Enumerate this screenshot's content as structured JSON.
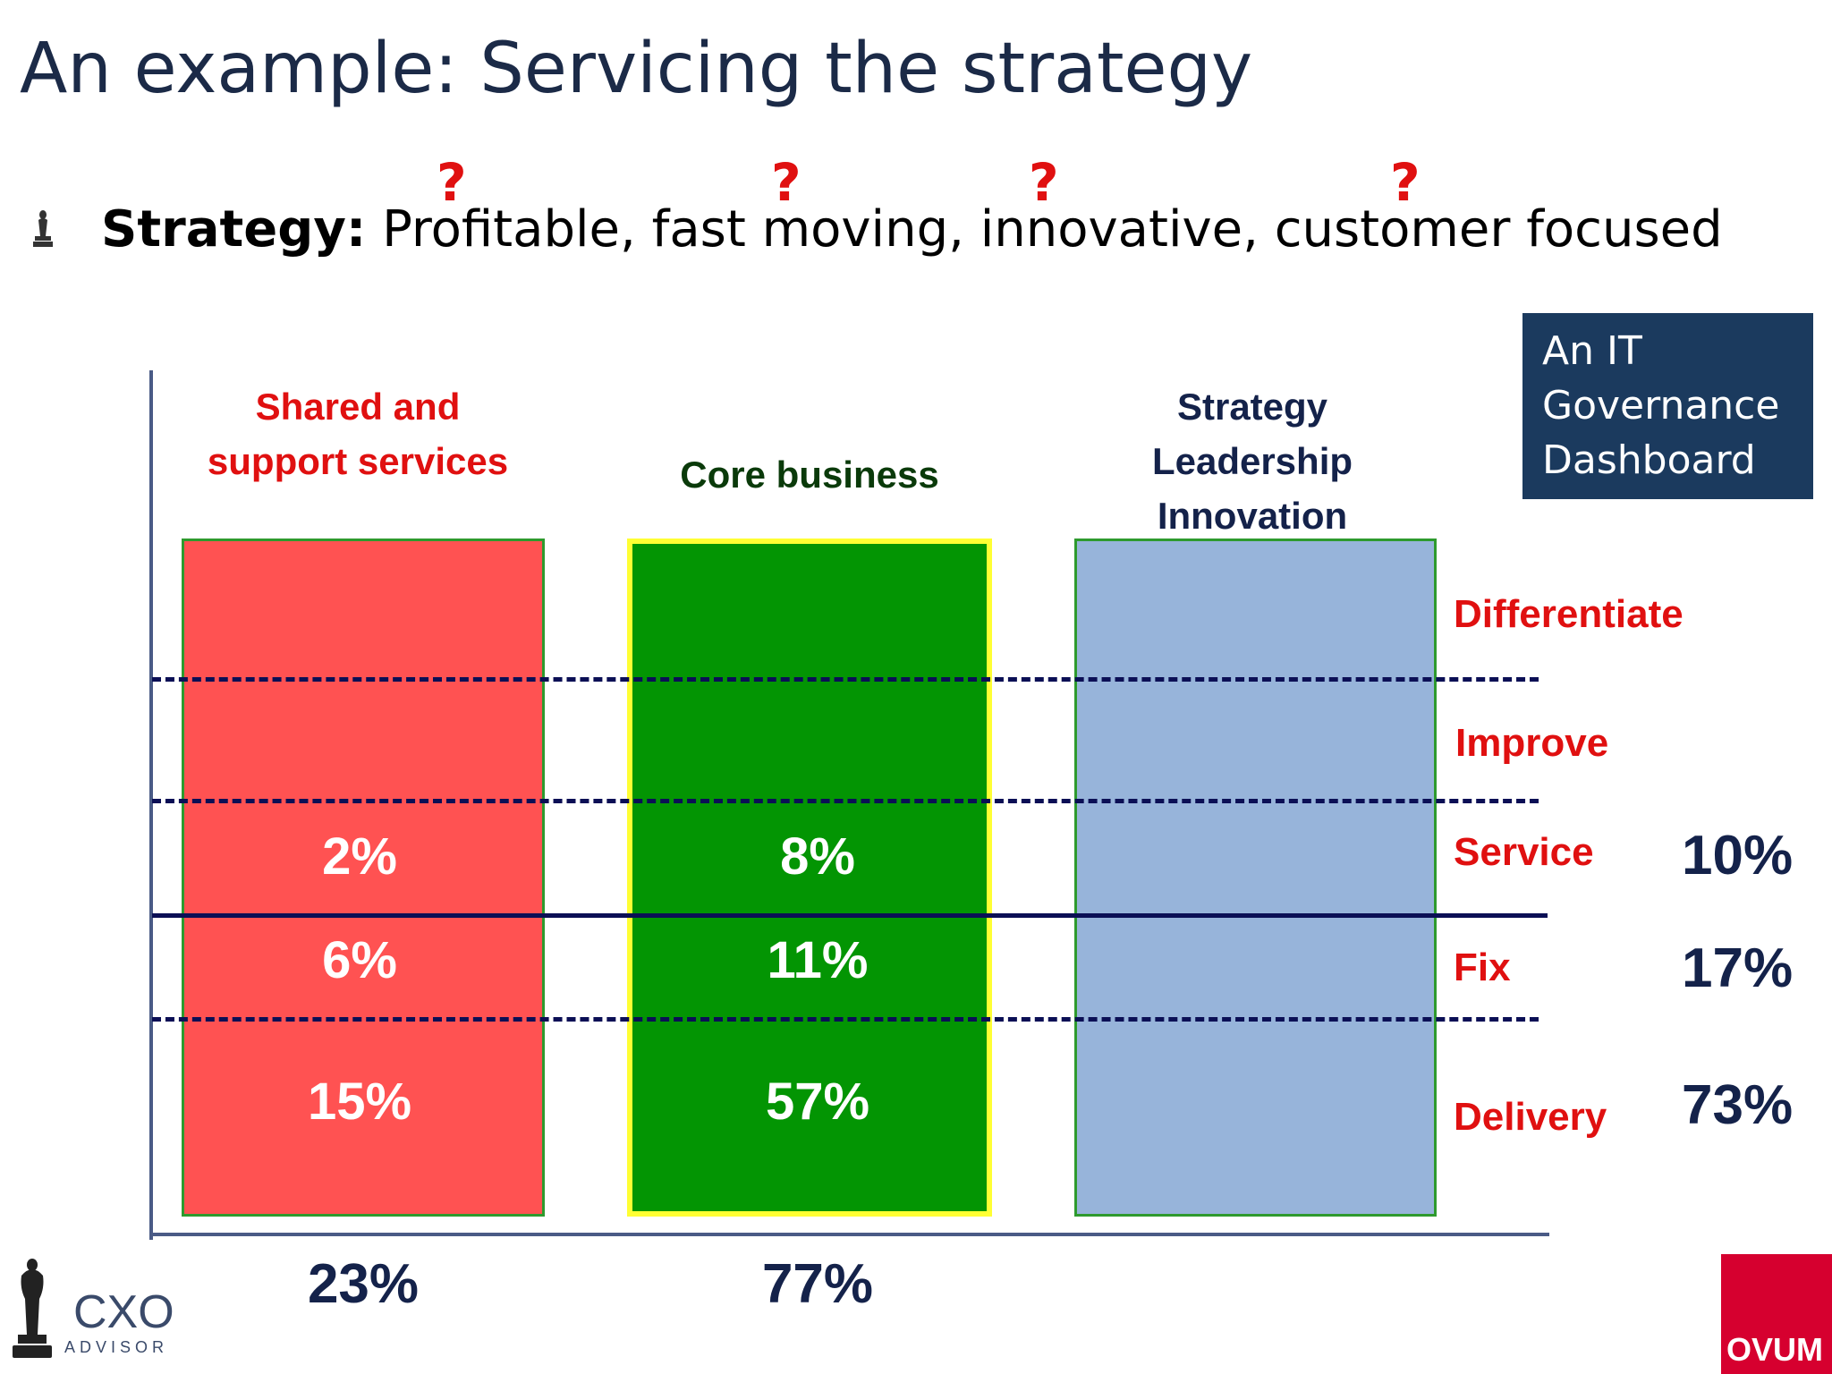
{
  "title": "An example: Servicing the strategy",
  "strategy": {
    "label": "Strategy:",
    "text": "Profitable, fast moving, innovative, customer focused",
    "question_mark": "?"
  },
  "columns": [
    {
      "header_line1": "Shared and",
      "header_line2": "support services",
      "color": "#ff5252",
      "header_color": "#e01010",
      "service": "2%",
      "fix": "6%",
      "delivery": "15%",
      "total": "23%"
    },
    {
      "header_line1": "Core business",
      "color": "#039503",
      "header_color": "#0a3a0a",
      "service": "8%",
      "fix": "11%",
      "delivery": "57%",
      "total": "77%"
    },
    {
      "header_line1": "Strategy",
      "header_line2": "Leadership",
      "header_line3": "Innovation",
      "color": "#97b4da",
      "header_color": "#14224a"
    }
  ],
  "rows": {
    "differentiate": "Differentiate",
    "improve": "Improve",
    "service": "Service",
    "fix": "Fix",
    "delivery": "Delivery"
  },
  "row_totals": {
    "service": "10%",
    "fix": "17%",
    "delivery": "73%"
  },
  "dashboard_box": {
    "line1": "An IT",
    "line2": "Governance",
    "line3": "Dashboard"
  },
  "logos": {
    "cxo_main": "CXO",
    "cxo_sub": "ADVISOR",
    "ovum": "OVUM"
  }
}
